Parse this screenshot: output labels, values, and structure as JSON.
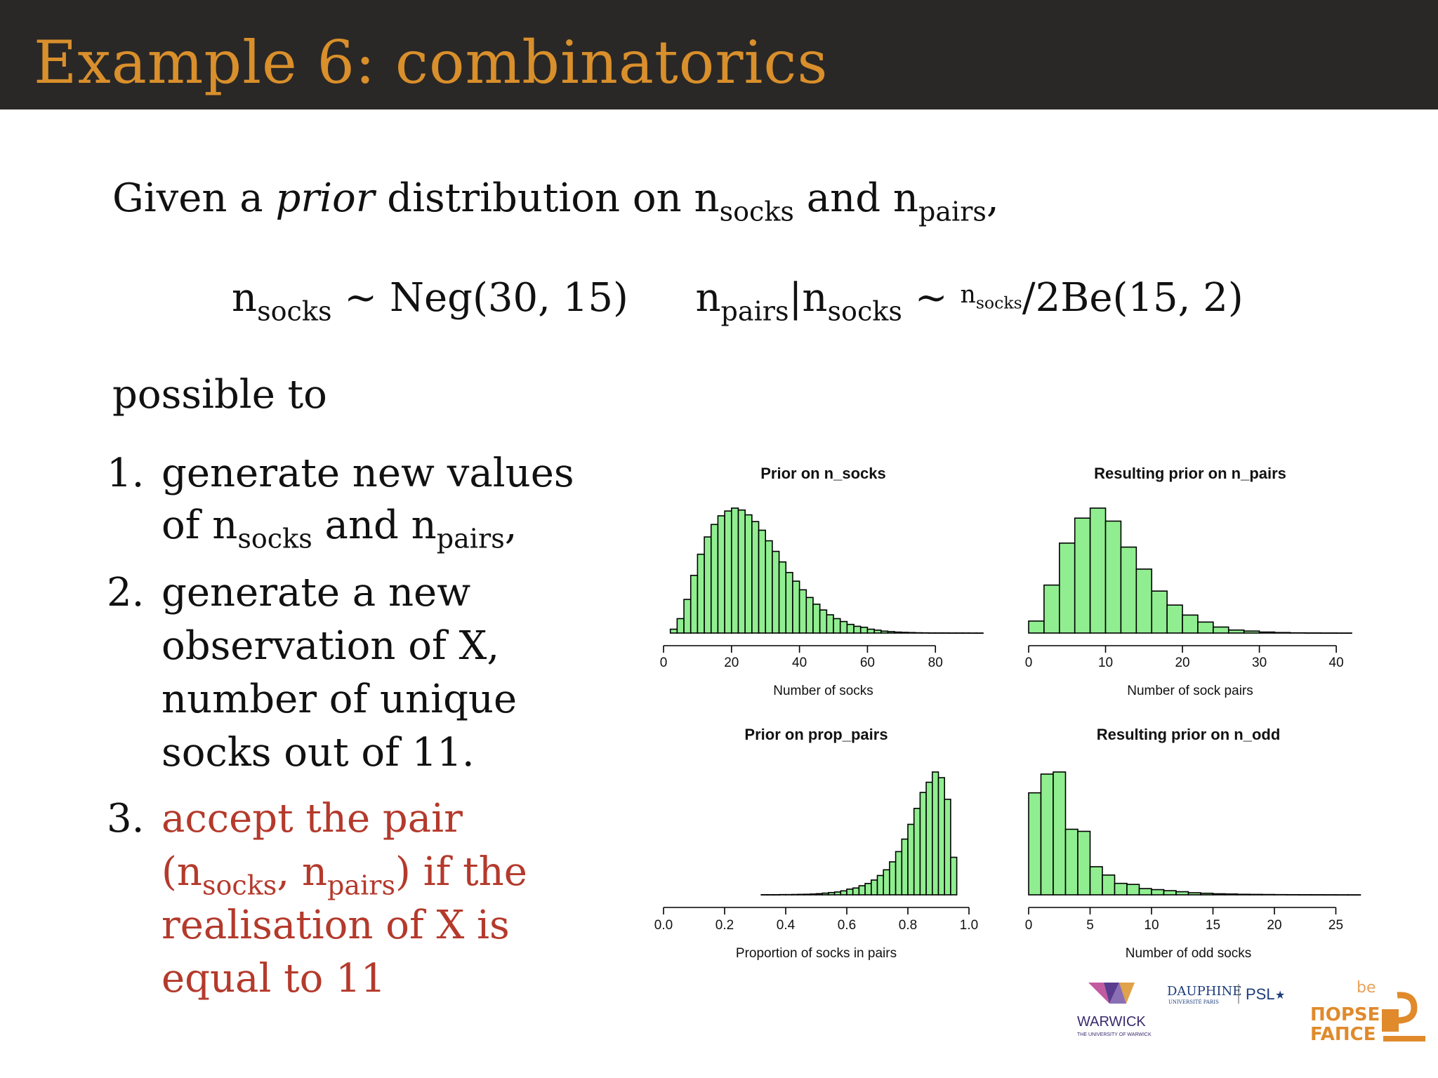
{
  "header": {
    "title": "Example 6:  combinatorics"
  },
  "intro": {
    "line1_a": "Given a ",
    "line1_prior": "prior",
    "line1_b": " distribution on ",
    "n": "n",
    "socks": "socks",
    "and": " and ",
    "pairs": "pairs",
    "comma": ","
  },
  "formula": {
    "tilde": " ~ ",
    "neg": "Neg(30, 15)",
    "cond": "|",
    "frac": "/2",
    "be": "Be(15, 2)"
  },
  "possible": "possible to",
  "list": [
    {
      "num": "1.",
      "l1": "generate new values",
      "l2a": "of ",
      "l2b": " and ",
      "l2c": ","
    },
    {
      "num": "2.",
      "l1": "generate a new",
      "l2": "observation of X,",
      "l3": "number of unique",
      "l4": "socks out of 11."
    },
    {
      "num": "3.",
      "l1": "accept the pair",
      "l2a": "(",
      "l2b": ", ",
      "l2c": ") if the",
      "l3": "realisation of X is",
      "l4": "equal to 11"
    }
  ],
  "colors": {
    "header_bg": "#2a2826",
    "title": "#d98f2b",
    "accent_red": "#b43a2c",
    "bar_fill": "#90ee90"
  },
  "chart_data": [
    {
      "type": "bar",
      "title": "Prior on n_socks",
      "xlabel": "Number of socks",
      "xlim": [
        0,
        94
      ],
      "xticks": [
        "0",
        "20",
        "40",
        "60",
        "80"
      ],
      "bin_width": 2,
      "x_start": 2,
      "values": [
        4,
        15,
        35,
        60,
        82,
        100,
        113,
        122,
        127,
        130,
        128,
        123,
        116,
        107,
        96,
        85,
        74,
        63,
        54,
        45,
        37,
        30,
        24,
        19,
        15,
        12,
        9,
        7,
        6,
        4,
        3,
        2,
        1.5,
        1,
        0.7,
        0.5,
        0.3,
        0.2,
        0.1,
        0.1,
        0.1,
        0.05,
        0.05,
        0.05,
        0.02,
        0.02
      ]
    },
    {
      "type": "bar",
      "title": "Resulting prior on n_pairs",
      "xlabel": "Number of sock pairs",
      "xlim": [
        0,
        42
      ],
      "xticks": [
        "0",
        "10",
        "20",
        "30",
        "40"
      ],
      "bin_width": 2,
      "x_start": 0,
      "values": [
        12,
        48,
        90,
        115,
        125,
        112,
        86,
        64,
        42,
        28,
        18,
        11,
        6,
        3,
        2,
        1,
        0.5,
        0.2,
        0.1,
        0.05,
        0.02
      ]
    },
    {
      "type": "bar",
      "title": "Prior on prop_pairs",
      "xlabel": "Proportion of socks in pairs",
      "xlim": [
        0,
        1
      ],
      "xticks": [
        "0.0",
        "0.2",
        "0.4",
        "0.6",
        "0.8",
        "1.0"
      ],
      "bin_width": 0.02,
      "x_start": 0.32,
      "values": [
        0.1,
        0.1,
        0.1,
        0.2,
        0.2,
        0.3,
        0.4,
        0.5,
        0.7,
        1,
        1.5,
        2,
        2.5,
        3.5,
        5,
        6,
        8,
        10,
        13,
        17,
        22,
        29,
        38,
        49,
        62,
        76,
        90,
        99,
        108,
        103,
        84,
        33
      ]
    },
    {
      "type": "bar",
      "title": "Resulting prior on n_odd",
      "xlabel": "Number of odd socks",
      "xlim": [
        0,
        26
      ],
      "xticks": [
        "0",
        "5",
        "10",
        "15",
        "20",
        "25"
      ],
      "bin_width": 1,
      "x_start": 0,
      "values": [
        98,
        116,
        118,
        63,
        61,
        27,
        19,
        11,
        10,
        6,
        5,
        4,
        3,
        2,
        1.5,
        1,
        0.8,
        0.5,
        0.4,
        0.3,
        0.2,
        0.15,
        0.1,
        0.08,
        0.05,
        0.03,
        0.02
      ]
    }
  ],
  "logos": {
    "warwick": "WARWICK",
    "warwick_sub": "THE UNIVERSITY OF WARWICK",
    "dauphine": "DAUPHINE",
    "dauphine_sub": "UNIVERSITÉ PARIS",
    "psl": "PSL",
    "psl_star": "★",
    "bayes1": "be",
    "bayes2": "ΠΟΡSE",
    "bayes3": "FAΠCE"
  }
}
